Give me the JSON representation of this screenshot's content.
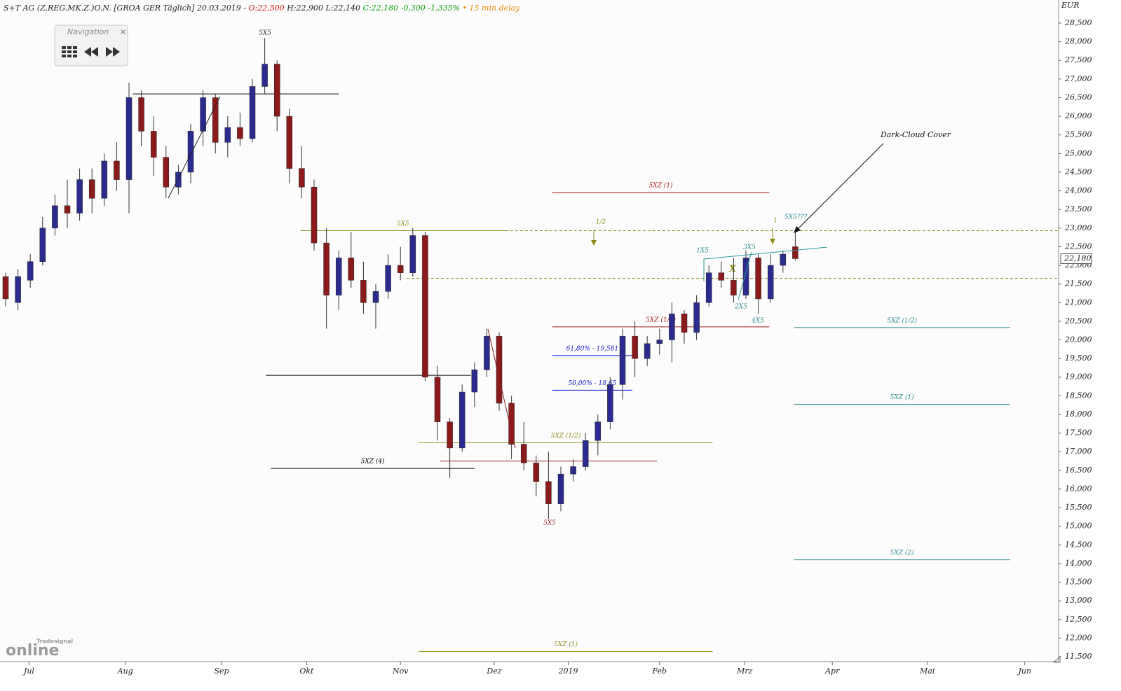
{
  "chart_data": {
    "type": "candlestick",
    "header": {
      "instrument": "S+T AG (Z.REG.MK.Z.)O.N. [GROA GER Täglich]",
      "date": "20.03.2019 -",
      "open": "O:22,500",
      "high": "H:22,900",
      "low": "L:22,140",
      "close": "C:22,180",
      "change": "-0,300",
      "change_pct": "-1,335%",
      "delay": "• 15 min delay"
    },
    "navigation": {
      "title": "Navigation",
      "close": "×"
    },
    "logo": {
      "brand": "Tradesignal",
      "name": "online"
    },
    "currency": "EUR",
    "last_price_label": "22,180",
    "last_price": 22.18,
    "up_color": "#2b2b8f",
    "down_color": "#8b1a1a",
    "xlim": [
      -0.4545,
      85.34
    ],
    "xticks": [
      {
        "value": 1.9,
        "label": "Jul"
      },
      {
        "value": 9.7,
        "label": "Aug"
      },
      {
        "value": 17.5,
        "label": "Sep"
      },
      {
        "value": 24.4,
        "label": "Okt"
      },
      {
        "value": 32.0,
        "label": "Nov"
      },
      {
        "value": 39.6,
        "label": "Dez"
      },
      {
        "value": 45.6,
        "label": "2019"
      },
      {
        "value": 53.0,
        "label": "Feb"
      },
      {
        "value": 59.9,
        "label": "Mrz"
      },
      {
        "value": 67.0,
        "label": "Apr"
      },
      {
        "value": 74.7,
        "label": "Mai"
      },
      {
        "value": 82.6,
        "label": "Jun"
      }
    ],
    "ylim": [
      11.5,
      28.5
    ],
    "yticks": [
      {
        "value": 11.5,
        "label": "11,500"
      },
      {
        "value": 12,
        "label": "12,000"
      },
      {
        "value": 12.5,
        "label": "12,500"
      },
      {
        "value": 13,
        "label": "13,000"
      },
      {
        "value": 13.5,
        "label": "13,500"
      },
      {
        "value": 14,
        "label": "14,000"
      },
      {
        "value": 14.5,
        "label": "14,500"
      },
      {
        "value": 15,
        "label": "15,000"
      },
      {
        "value": 15.5,
        "label": "15,500"
      },
      {
        "value": 16,
        "label": "16,000"
      },
      {
        "value": 16.5,
        "label": "16,500"
      },
      {
        "value": 17,
        "label": "17,000"
      },
      {
        "value": 17.5,
        "label": "17,500"
      },
      {
        "value": 18,
        "label": "18,000"
      },
      {
        "value": 18.5,
        "label": "18,500"
      },
      {
        "value": 19,
        "label": "19,000"
      },
      {
        "value": 19.5,
        "label": "19,500"
      },
      {
        "value": 20,
        "label": "20,000"
      },
      {
        "value": 20.5,
        "label": "20,500"
      },
      {
        "value": 21,
        "label": "21,000"
      },
      {
        "value": 21.5,
        "label": "21,500"
      },
      {
        "value": 22,
        "label": "22,000"
      },
      {
        "value": 22.5,
        "label": "22,500"
      },
      {
        "value": 23,
        "label": "23,000"
      },
      {
        "value": 23.5,
        "label": "23,500"
      },
      {
        "value": 24,
        "label": "24,000"
      },
      {
        "value": 24.5,
        "label": "24,500"
      },
      {
        "value": 25,
        "label": "25,000"
      },
      {
        "value": 25.5,
        "label": "25,500"
      },
      {
        "value": 26,
        "label": "26,000"
      },
      {
        "value": 26.5,
        "label": "26,500"
      },
      {
        "value": 27,
        "label": "27,000"
      },
      {
        "value": 27.5,
        "label": "27,500"
      },
      {
        "value": 28,
        "label": "28,000"
      },
      {
        "value": 28.5,
        "label": "28,500"
      }
    ],
    "candles": [
      [
        21.7,
        21.8,
        20.9,
        21.1
      ],
      [
        21.0,
        21.9,
        20.8,
        21.7
      ],
      [
        21.6,
        22.3,
        21.4,
        22.1
      ],
      [
        22.1,
        23.3,
        22.0,
        23.0
      ],
      [
        23.0,
        23.9,
        22.8,
        23.6
      ],
      [
        23.6,
        24.3,
        23.0,
        23.4
      ],
      [
        23.4,
        24.6,
        23.2,
        24.3
      ],
      [
        24.3,
        24.6,
        23.4,
        23.8
      ],
      [
        23.8,
        25.0,
        23.6,
        24.8
      ],
      [
        24.8,
        25.3,
        24.0,
        24.3
      ],
      [
        24.3,
        26.9,
        23.4,
        26.5
      ],
      [
        26.5,
        26.7,
        25.2,
        25.6
      ],
      [
        25.6,
        26.0,
        24.4,
        24.9
      ],
      [
        24.9,
        25.2,
        23.8,
        24.1
      ],
      [
        24.1,
        24.7,
        23.9,
        24.5
      ],
      [
        24.5,
        25.8,
        24.2,
        25.6
      ],
      [
        25.6,
        26.7,
        25.2,
        26.5
      ],
      [
        26.5,
        26.6,
        25.0,
        25.3
      ],
      [
        25.3,
        26.0,
        24.9,
        25.7
      ],
      [
        25.7,
        26.1,
        25.2,
        25.4
      ],
      [
        25.4,
        27.0,
        25.3,
        26.8
      ],
      [
        26.8,
        28.1,
        26.6,
        27.4
      ],
      [
        27.4,
        27.5,
        25.6,
        26.0
      ],
      [
        26.0,
        26.2,
        24.2,
        24.6
      ],
      [
        24.6,
        25.2,
        23.8,
        24.1
      ],
      [
        24.1,
        24.3,
        22.4,
        22.6
      ],
      [
        22.6,
        23.0,
        20.3,
        21.2
      ],
      [
        21.2,
        22.4,
        20.8,
        22.2
      ],
      [
        22.2,
        22.9,
        21.4,
        21.6
      ],
      [
        21.6,
        22.1,
        20.7,
        21.0
      ],
      [
        21.0,
        21.5,
        20.3,
        21.3
      ],
      [
        21.3,
        22.3,
        21.1,
        22.0
      ],
      [
        22.0,
        22.5,
        21.6,
        21.8
      ],
      [
        21.8,
        23.0,
        21.7,
        22.8
      ],
      [
        22.8,
        22.9,
        18.9,
        19.0
      ],
      [
        19.0,
        19.3,
        17.3,
        17.8
      ],
      [
        17.8,
        17.9,
        16.3,
        17.1
      ],
      [
        17.1,
        18.8,
        17.0,
        18.6
      ],
      [
        18.6,
        19.4,
        18.2,
        19.2
      ],
      [
        19.2,
        20.3,
        19.0,
        20.1
      ],
      [
        20.1,
        20.2,
        18.1,
        18.3
      ],
      [
        18.3,
        18.5,
        16.8,
        17.2
      ],
      [
        17.2,
        17.8,
        16.5,
        16.7
      ],
      [
        16.7,
        16.9,
        15.8,
        16.2
      ],
      [
        16.2,
        17.0,
        15.2,
        15.6
      ],
      [
        15.6,
        16.6,
        15.4,
        16.4
      ],
      [
        16.4,
        16.8,
        16.2,
        16.6
      ],
      [
        16.6,
        17.5,
        16.5,
        17.3
      ],
      [
        17.3,
        18.0,
        16.9,
        17.8
      ],
      [
        17.8,
        19.0,
        17.6,
        18.8
      ],
      [
        18.8,
        20.3,
        18.4,
        20.1
      ],
      [
        20.1,
        20.5,
        19.0,
        19.5
      ],
      [
        19.5,
        20.1,
        19.3,
        19.9
      ],
      [
        19.9,
        20.3,
        19.6,
        20.0
      ],
      [
        20.0,
        21.0,
        19.4,
        20.7
      ],
      [
        20.7,
        20.8,
        19.9,
        20.2
      ],
      [
        20.2,
        21.2,
        20.0,
        21.0
      ],
      [
        21.0,
        22.0,
        20.9,
        21.8
      ],
      [
        21.8,
        22.1,
        21.4,
        21.6
      ],
      [
        21.6,
        22.2,
        21.0,
        21.2
      ],
      [
        21.2,
        22.4,
        21.1,
        22.2
      ],
      [
        22.2,
        22.3,
        20.7,
        21.1
      ],
      [
        21.1,
        22.3,
        21.0,
        22.0
      ],
      [
        22.0,
        22.4,
        21.8,
        22.3
      ],
      [
        22.5,
        22.9,
        22.14,
        22.18
      ]
    ],
    "levels": [
      {
        "value": 26.6,
        "from": 10.3,
        "to": 27.0,
        "color": "#000000",
        "style": "solid"
      },
      {
        "value": 19.05,
        "from": 21.1,
        "to": 37.7,
        "color": "#000000",
        "style": "solid"
      },
      {
        "label": "5XZ (4)",
        "value": 16.55,
        "from": 21.5,
        "to": 38.0,
        "color": "#000000",
        "style": "solid"
      },
      {
        "label": "5XZ (1)",
        "value": 23.95,
        "from": 44.3,
        "to": 61.9,
        "color": "#a01c1c",
        "style": "solid"
      },
      {
        "label": "5X5",
        "value": 22.93,
        "from": 23.9,
        "to": 40.5,
        "color": "#8c8c1a",
        "style": "solid"
      },
      {
        "value": 22.93,
        "from": 40.5,
        "to": 85.34,
        "color": "#8c8c1a",
        "style": "dashed"
      },
      {
        "label": "X",
        "value": 21.65,
        "from": 32.5,
        "to": 85.34,
        "color": "#8c8c1a",
        "style": "dashed"
      },
      {
        "label": "5XZ (1/2)",
        "value": 20.35,
        "from": 44.3,
        "to": 61.9,
        "color": "#a01c1c",
        "style": "solid"
      },
      {
        "label": "5XZ (1/2)",
        "value": 20.33,
        "from": 63.9,
        "to": 81.4,
        "color": "#2a8a8a",
        "style": "solid"
      },
      {
        "label": "5XZ (1)",
        "value": 18.27,
        "from": 63.9,
        "to": 81.4,
        "color": "#2a8a8a",
        "style": "solid"
      },
      {
        "label": "5XZ (2)",
        "value": 14.1,
        "from": 63.9,
        "to": 81.4,
        "color": "#2a8a8a",
        "style": "solid"
      },
      {
        "label": "5XZ (1/2)",
        "value": 17.24,
        "from": 33.5,
        "to": 57.3,
        "color": "#8c8c1a",
        "style": "solid"
      },
      {
        "value": 16.75,
        "from": 35.2,
        "to": 52.8,
        "color": "#a01c1c",
        "style": "solid"
      },
      {
        "label": "5XZ (1)",
        "value": 11.64,
        "from": 33.5,
        "to": 57.3,
        "color": "#8c8c1a",
        "style": "solid"
      },
      {
        "label": "61,80% - 19,581",
        "value": 19.58,
        "from": 44.3,
        "to": 50.8,
        "color": "#1a1acc",
        "style": "solid"
      },
      {
        "label": "50,00% - 18,65",
        "value": 18.65,
        "from": 44.3,
        "to": 50.8,
        "color": "#1a1acc",
        "style": "solid"
      }
    ],
    "annotations": [
      "5X5",
      "5X5",
      "1X5",
      "3X5",
      "2X5",
      "4X5",
      "5X5???",
      "Dark-Cloud Cover",
      "1/2",
      "1"
    ]
  }
}
